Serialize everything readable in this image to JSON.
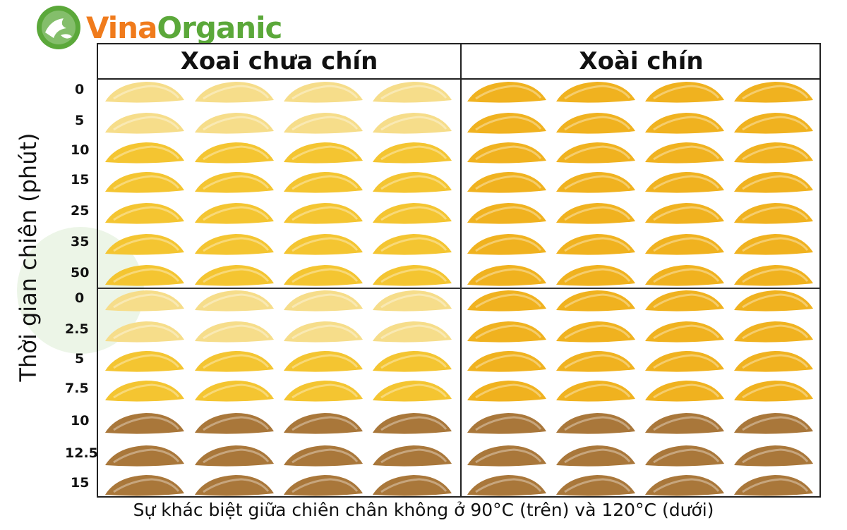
{
  "logo": {
    "vina": "Vina",
    "organic": "Organic"
  },
  "columns": [
    "Xoai chưa chín",
    "Xoài chín"
  ],
  "y_axis_label": "Thời gian chiên (phút)",
  "row_ticks_top": [
    "0",
    "5",
    "10",
    "15",
    "25",
    "35",
    "50"
  ],
  "row_ticks_bottom": [
    "0",
    "2.5",
    "5",
    "7.5",
    "10",
    "12.5",
    "15"
  ],
  "caption": "Sự khác biệt giữa chiên chân không ở 90°C (trên) và 120°C (dưới)",
  "colors": {
    "logo_orange": "#f07b1c",
    "logo_green": "#5ba83a",
    "chip_pale": "#f6dd8a",
    "chip_yellow": "#f4c531",
    "chip_gold": "#f0b21f",
    "chip_brown": "#a9773a"
  }
}
